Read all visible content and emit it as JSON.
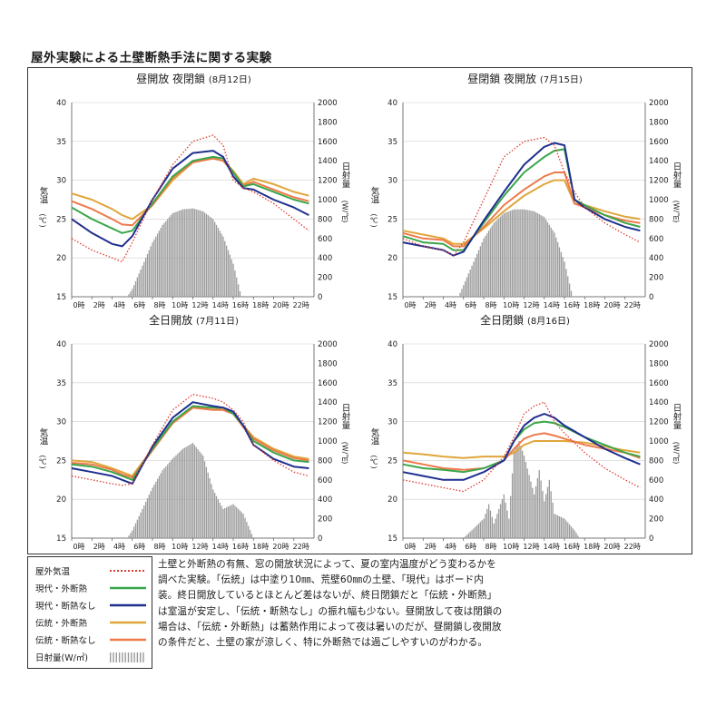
{
  "page": {
    "title": "屋外実験による土壁断熱手法に関する実験"
  },
  "colors": {
    "outdoor": "#e03a2f",
    "modern_ins": "#3aa64a",
    "modern_noins": "#1f2f8f",
    "trad_ins": "#e0a63a",
    "trad_noins": "#ee7a4a",
    "solar": "#9a9a9a"
  },
  "legend": {
    "items": [
      {
        "label": "屋外気温",
        "key": "outdoor",
        "style": "dotted"
      },
      {
        "label": "現代・外断熱",
        "key": "modern_ins",
        "style": "line"
      },
      {
        "label": "現代・断熱なし",
        "key": "modern_noins",
        "style": "line"
      },
      {
        "label": "伝統・外断熱",
        "key": "trad_ins",
        "style": "line"
      },
      {
        "label": "伝統・断熱なし",
        "key": "trad_noins",
        "style": "line"
      },
      {
        "label": "日射量(W/㎡)",
        "key": "solar",
        "style": "bars"
      }
    ]
  },
  "description": "土壁と外断熱の有無、窓の開放状況によって、夏の室内温度がどう変わるかを調べた実験。「伝統」は中塗り10㎜、荒壁60㎜の土壁、「現代」はボード内装。終日開放しているとほとんど差はないが、終日閉鎖だと「伝統・外断熱」は室温が安定し、「伝統・断熱なし」の振れ幅も少ない。昼開放して夜は閉鎖の場合は、「伝統・外断熱」は蓄熱作用によって夜は暑いのだが、昼開鎖し夜開放の条件だと、土壁の家が涼しく、特に外断熱では過ごしやすいのがわかる。",
  "chart_common": {
    "left_axis_label": "気温",
    "left_axis_unit": "(℃)",
    "right_axis_label": "日射量",
    "right_axis_unit": "(W/㎡)",
    "left_ticks": [
      "40",
      "35",
      "30",
      "25",
      "20",
      "15"
    ],
    "right_ticks": [
      "2000",
      "1800",
      "1600",
      "1400",
      "1200",
      "1000",
      "800",
      "600",
      "400",
      "200",
      "0"
    ],
    "x_ticks": [
      "0時",
      "2時",
      "4時",
      "6時",
      "8時",
      "10時",
      "12時",
      "14時",
      "16時",
      "18時",
      "20時",
      "22時"
    ]
  },
  "chart_data": [
    {
      "type": "line",
      "title": "昼開放 夜閉鎖",
      "date": "(8月12日)",
      "ylim": [
        15,
        40
      ],
      "y2lim": [
        0,
        2000
      ],
      "x": [
        0,
        2,
        4,
        5,
        6,
        8,
        10,
        12,
        14,
        15,
        16,
        17,
        18,
        20,
        22,
        23.5
      ],
      "series": [
        {
          "name": "屋外気温",
          "key": "outdoor",
          "values": [
            22.5,
            21.0,
            20.0,
            19.5,
            22.0,
            27.5,
            32.0,
            35.0,
            35.8,
            34.5,
            30.0,
            29.0,
            28.5,
            27.0,
            25.0,
            23.5
          ]
        },
        {
          "name": "現代・外断熱",
          "key": "modern_ins",
          "values": [
            26.5,
            25.0,
            23.8,
            23.2,
            23.5,
            27.0,
            30.5,
            32.5,
            33.0,
            32.8,
            31.0,
            29.2,
            29.5,
            28.5,
            27.5,
            27.0
          ]
        },
        {
          "name": "現代・断熱なし",
          "key": "modern_noins",
          "values": [
            25.0,
            23.2,
            21.8,
            21.5,
            22.8,
            27.5,
            31.5,
            33.5,
            33.8,
            33.0,
            30.5,
            29.0,
            28.8,
            27.5,
            26.5,
            25.5
          ]
        },
        {
          "name": "伝統・外断熱",
          "key": "trad_ins",
          "values": [
            28.3,
            27.5,
            26.3,
            25.5,
            25.0,
            26.8,
            30.0,
            32.3,
            32.8,
            32.5,
            31.2,
            29.5,
            30.2,
            29.5,
            28.5,
            28.0
          ]
        },
        {
          "name": "伝統・断熱なし",
          "key": "trad_noins",
          "values": [
            27.3,
            26.3,
            25.0,
            24.3,
            24.2,
            26.8,
            30.3,
            32.3,
            32.8,
            32.5,
            31.0,
            29.3,
            29.8,
            28.8,
            27.8,
            27.3
          ]
        }
      ],
      "solar": {
        "hours": [
          5.5,
          6,
          7,
          8,
          9,
          10,
          11,
          12,
          13,
          14,
          15,
          16,
          16.8
        ],
        "values": [
          0,
          80,
          320,
          560,
          740,
          860,
          900,
          910,
          880,
          800,
          620,
          340,
          0
        ]
      }
    },
    {
      "type": "line",
      "title": "昼閉鎖 夜開放",
      "date": "(7月15日)",
      "ylim": [
        15,
        40
      ],
      "y2lim": [
        0,
        2000
      ],
      "x": [
        0,
        2,
        4,
        5,
        6,
        8,
        10,
        12,
        14,
        15,
        16,
        17,
        18,
        20,
        22,
        23.5
      ],
      "series": [
        {
          "name": "屋外気温",
          "key": "outdoor",
          "values": [
            22.5,
            21.5,
            21.0,
            20.3,
            22.0,
            27.5,
            33.0,
            35.0,
            35.5,
            34.5,
            31.0,
            28.5,
            26.5,
            24.5,
            23.0,
            22.0
          ]
        },
        {
          "name": "現代・外断熱",
          "key": "modern_ins",
          "values": [
            22.8,
            22.0,
            21.8,
            21.0,
            21.0,
            24.5,
            28.0,
            31.0,
            33.0,
            33.8,
            34.0,
            27.5,
            26.8,
            25.5,
            24.5,
            24.0
          ]
        },
        {
          "name": "現代・断熱なし",
          "key": "modern_noins",
          "values": [
            22.0,
            21.5,
            21.0,
            20.3,
            20.8,
            24.8,
            28.5,
            32.0,
            34.3,
            34.8,
            34.5,
            27.5,
            26.5,
            25.0,
            24.0,
            23.5
          ]
        },
        {
          "name": "伝統・外断熱",
          "key": "trad_ins",
          "values": [
            23.5,
            23.0,
            22.5,
            21.8,
            21.8,
            23.8,
            26.0,
            28.0,
            29.5,
            30.0,
            30.0,
            27.0,
            26.8,
            26.0,
            25.3,
            25.0
          ]
        },
        {
          "name": "伝統・断熱なし",
          "key": "trad_noins",
          "values": [
            23.2,
            22.5,
            22.3,
            21.5,
            21.5,
            24.0,
            26.8,
            28.8,
            30.5,
            31.0,
            31.0,
            27.0,
            26.5,
            25.5,
            24.8,
            24.5
          ]
        }
      ],
      "solar": {
        "hours": [
          5.5,
          6,
          7,
          8,
          9,
          10,
          11,
          12,
          13,
          14,
          15,
          16,
          16.8
        ],
        "values": [
          0,
          120,
          360,
          600,
          760,
          860,
          900,
          900,
          880,
          820,
          660,
          360,
          0
        ]
      }
    },
    {
      "type": "line",
      "title": "全日開放",
      "date": "(7月11日)",
      "ylim": [
        15,
        40
      ],
      "y2lim": [
        0,
        2000
      ],
      "x": [
        0,
        2,
        4,
        5,
        6,
        8,
        10,
        12,
        14,
        15,
        16,
        17,
        18,
        20,
        22,
        23.5
      ],
      "series": [
        {
          "name": "屋外気温",
          "key": "outdoor",
          "values": [
            23.0,
            22.5,
            22.0,
            21.8,
            22.0,
            27.0,
            31.5,
            33.5,
            33.0,
            32.5,
            31.5,
            30.0,
            27.0,
            25.0,
            23.5,
            23.0
          ]
        },
        {
          "name": "現代・外断熱",
          "key": "modern_ins",
          "values": [
            24.5,
            24.2,
            23.5,
            23.0,
            22.5,
            26.5,
            30.0,
            32.0,
            31.8,
            31.8,
            31.0,
            29.5,
            27.5,
            26.0,
            25.0,
            24.8
          ]
        },
        {
          "name": "現代・断熱なし",
          "key": "modern_noins",
          "values": [
            24.0,
            23.5,
            23.0,
            22.5,
            22.0,
            26.8,
            30.5,
            32.5,
            32.0,
            31.8,
            31.3,
            29.5,
            27.0,
            25.2,
            24.2,
            24.0
          ]
        },
        {
          "name": "伝統・外断熱",
          "key": "trad_ins",
          "values": [
            25.0,
            24.8,
            24.0,
            23.5,
            23.0,
            26.5,
            29.8,
            31.8,
            31.8,
            31.5,
            31.0,
            29.5,
            28.0,
            26.5,
            25.5,
            25.2
          ]
        },
        {
          "name": "伝統・断熱なし",
          "key": "trad_noins",
          "values": [
            24.7,
            24.5,
            23.8,
            23.2,
            22.8,
            26.3,
            29.8,
            31.8,
            31.5,
            31.5,
            31.0,
            29.3,
            27.8,
            26.3,
            25.3,
            25.0
          ]
        }
      ],
      "solar": {
        "hours": [
          5.5,
          6,
          7,
          8,
          9,
          10,
          11,
          12,
          13,
          14,
          15,
          16,
          17,
          18
        ],
        "values": [
          0,
          80,
          300,
          520,
          700,
          820,
          920,
          980,
          850,
          500,
          300,
          350,
          250,
          0
        ]
      }
    },
    {
      "type": "line",
      "title": "全日閉鎖",
      "date": "(8月16日)",
      "ylim": [
        15,
        40
      ],
      "y2lim": [
        0,
        2000
      ],
      "x": [
        0,
        2,
        4,
        6,
        8,
        10,
        11,
        12,
        13,
        14,
        15,
        16,
        18,
        20,
        22,
        23.5
      ],
      "series": [
        {
          "name": "屋外気温",
          "key": "outdoor",
          "values": [
            22.5,
            22.0,
            21.5,
            21.0,
            22.5,
            25.5,
            28.0,
            31.0,
            32.0,
            32.5,
            30.0,
            28.5,
            26.0,
            24.0,
            22.5,
            21.5
          ]
        },
        {
          "name": "現代・外断熱",
          "key": "modern_ins",
          "values": [
            24.5,
            24.0,
            23.8,
            23.5,
            24.0,
            25.0,
            27.5,
            29.0,
            29.8,
            30.0,
            29.8,
            29.3,
            28.0,
            27.0,
            26.0,
            25.5
          ]
        },
        {
          "name": "現代・断熱なし",
          "key": "modern_noins",
          "values": [
            23.5,
            23.0,
            22.5,
            22.5,
            23.5,
            25.0,
            27.5,
            29.5,
            30.5,
            31.0,
            30.5,
            29.5,
            28.0,
            26.5,
            25.3,
            24.5
          ]
        },
        {
          "name": "伝統・外断熱",
          "key": "trad_ins",
          "values": [
            26.0,
            25.8,
            25.5,
            25.3,
            25.5,
            25.5,
            26.0,
            27.0,
            27.5,
            27.5,
            27.5,
            27.5,
            27.3,
            26.8,
            26.3,
            26.0
          ]
        },
        {
          "name": "伝統・断熱なし",
          "key": "trad_noins",
          "values": [
            25.0,
            24.5,
            24.0,
            23.8,
            24.0,
            25.0,
            26.5,
            27.8,
            28.3,
            28.5,
            28.2,
            27.8,
            27.0,
            26.5,
            26.0,
            25.3
          ]
        }
      ],
      "solar": {
        "hours": [
          6,
          7,
          8,
          8.5,
          9,
          10,
          10.5,
          11,
          11.5,
          12,
          12.5,
          13,
          13.5,
          14,
          14.5,
          15,
          16,
          17,
          17.5
        ],
        "values": [
          0,
          100,
          200,
          350,
          150,
          450,
          200,
          900,
          1000,
          850,
          650,
          450,
          700,
          380,
          600,
          250,
          200,
          80,
          0
        ]
      }
    }
  ]
}
